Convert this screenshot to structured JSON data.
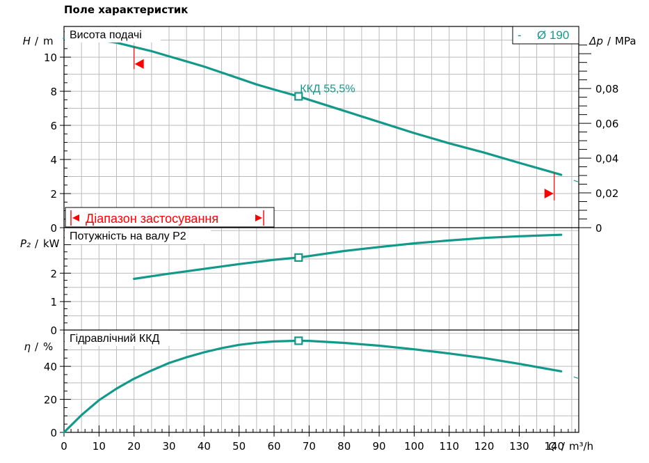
{
  "page_title": "Поле характеристик",
  "colors": {
    "curve": "#12998a",
    "range": "#ff0000",
    "grid": "#bbbbbb",
    "axis": "#000000"
  },
  "chart_data": [
    {
      "type": "line",
      "panel": "head",
      "label": "Висота подачі",
      "y_symbol": "H",
      "y_unit": "m",
      "ylim": [
        0,
        11.8
      ],
      "yticks": [
        0,
        2,
        4,
        6,
        8,
        10
      ],
      "secondary_axis": {
        "symbol": "Δp",
        "unit": "MPa",
        "ticks": [
          "0",
          "0,02",
          "0,04",
          "0,06",
          "0,08"
        ],
        "tick_values": [
          0,
          0.02,
          0.04,
          0.06,
          0.08
        ]
      },
      "diameter_label": "Ø 190",
      "diameter_dash": "-",
      "bep": {
        "x": 67,
        "y": 7.7,
        "label": "ККД  55,5%"
      },
      "series": [
        {
          "x": [
            0,
            5,
            10,
            15,
            20,
            25,
            30,
            35,
            40,
            45,
            50,
            55,
            60,
            67,
            70,
            80,
            90,
            100,
            110,
            120,
            130,
            142
          ],
          "y": [
            11.1,
            11.08,
            11.0,
            10.85,
            10.6,
            10.35,
            10.05,
            9.75,
            9.45,
            9.1,
            8.75,
            8.4,
            8.1,
            7.7,
            7.5,
            6.85,
            6.2,
            5.55,
            4.95,
            4.4,
            3.8,
            3.1
          ]
        }
      ],
      "range": {
        "label": "Діапазон застосування",
        "x_min": 20,
        "x_max": 140
      }
    },
    {
      "type": "line",
      "panel": "power",
      "label": "Потужність на валу P2",
      "y_symbol": "P₂",
      "y_unit": "kW",
      "ylim": [
        0,
        3.6
      ],
      "yticks": [
        0,
        1,
        2
      ],
      "bep": {
        "x": 67,
        "y": 2.55
      },
      "series": [
        {
          "x": [
            20,
            30,
            40,
            50,
            60,
            67,
            80,
            90,
            100,
            110,
            120,
            130,
            142
          ],
          "y": [
            1.8,
            1.98,
            2.15,
            2.32,
            2.47,
            2.55,
            2.78,
            2.92,
            3.05,
            3.15,
            3.24,
            3.3,
            3.35
          ]
        }
      ]
    },
    {
      "type": "line",
      "panel": "efficiency",
      "label": "Гідравлічний ККД",
      "y_symbol": "η",
      "y_unit": "%",
      "ylim": [
        0,
        62
      ],
      "yticks": [
        0,
        20,
        40
      ],
      "bep": {
        "x": 67,
        "y": 55.5
      },
      "series": [
        {
          "x": [
            0,
            5,
            10,
            15,
            20,
            25,
            30,
            35,
            40,
            45,
            50,
            55,
            60,
            67,
            70,
            80,
            90,
            100,
            110,
            120,
            130,
            142
          ],
          "y": [
            0,
            10.5,
            19.5,
            26.5,
            32.5,
            37.5,
            42,
            45.5,
            48.5,
            51,
            53,
            54.3,
            55.1,
            55.5,
            55.4,
            54.2,
            52.5,
            50.3,
            47.8,
            45,
            41.5,
            37
          ]
        }
      ]
    },
    {
      "type": "axis",
      "x_symbol": "Q",
      "x_unit": "m³/h",
      "xlim": [
        0,
        147
      ],
      "xticks": [
        0,
        10,
        20,
        30,
        40,
        50,
        60,
        70,
        80,
        90,
        100,
        110,
        120,
        130,
        140
      ]
    }
  ]
}
